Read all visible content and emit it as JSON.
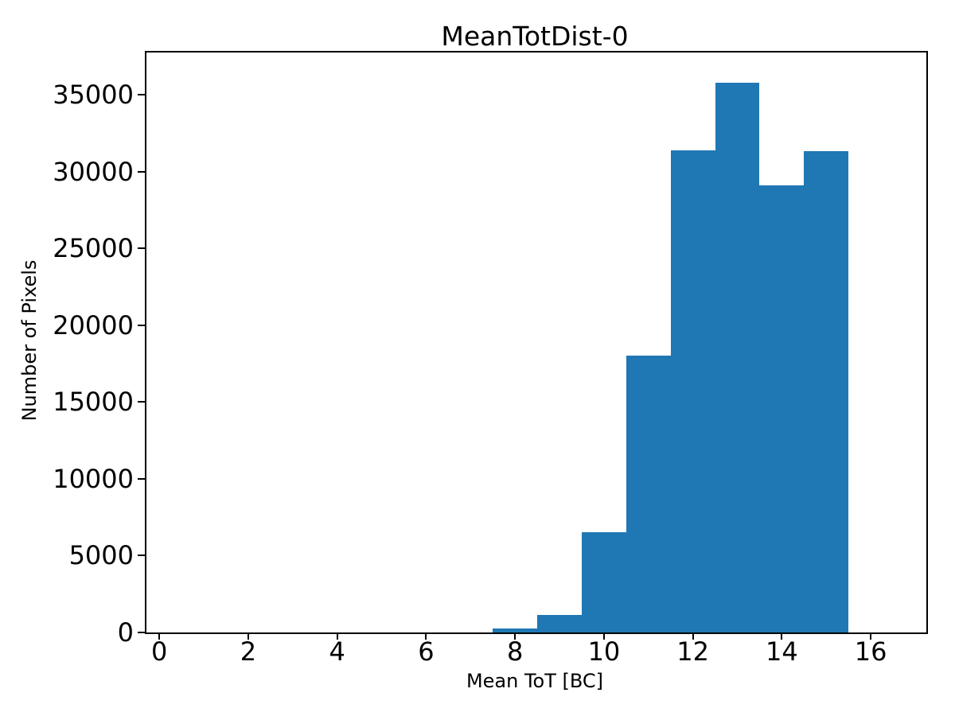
{
  "chart_data": {
    "type": "bar",
    "title": "MeanTotDist-0",
    "xlabel": "Mean ToT [BC]",
    "ylabel": "Number of Pixels",
    "bin_edges": [
      7.5,
      8.5,
      9.5,
      10.5,
      11.5,
      12.5,
      13.5,
      14.5,
      15.5
    ],
    "values": [
      250,
      1150,
      6550,
      18000,
      31400,
      35800,
      29100,
      31300
    ],
    "xticks": [
      0,
      2,
      4,
      6,
      8,
      10,
      12,
      14,
      16
    ],
    "yticks": [
      0,
      5000,
      10000,
      15000,
      20000,
      25000,
      30000,
      35000
    ],
    "xlim": [
      -0.29,
      17.25
    ],
    "ylim": [
      0,
      37745
    ],
    "bar_color": "#1f77b4",
    "grid": false,
    "legend": null
  }
}
